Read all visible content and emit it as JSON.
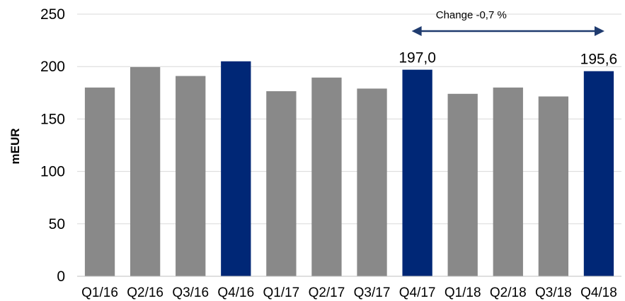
{
  "chart_data": {
    "type": "bar",
    "categories": [
      "Q1/16",
      "Q2/16",
      "Q3/16",
      "Q4/16",
      "Q1/17",
      "Q2/17",
      "Q3/17",
      "Q4/17",
      "Q1/18",
      "Q2/18",
      "Q3/18",
      "Q4/18"
    ],
    "values": [
      180,
      199.5,
      191,
      205,
      176.5,
      189.5,
      179,
      197.0,
      174,
      180,
      171.5,
      195.6
    ],
    "highlighted": [
      3,
      7,
      11
    ],
    "colors": {
      "default": "#898989",
      "highlight": "#002776",
      "arrow": "#1f3b6f",
      "grid": "#d9d9d9"
    },
    "ylabel": "mEUR",
    "ylim": [
      0,
      250
    ],
    "yticks": [
      0,
      50,
      100,
      150,
      200,
      250
    ],
    "grid": true,
    "data_labels": [
      {
        "index": 7,
        "text": "197,0"
      },
      {
        "index": 11,
        "text": "195,6"
      }
    ],
    "annotation": {
      "text": "Change -0,7 %",
      "from_index": 7,
      "to_index": 11
    }
  }
}
